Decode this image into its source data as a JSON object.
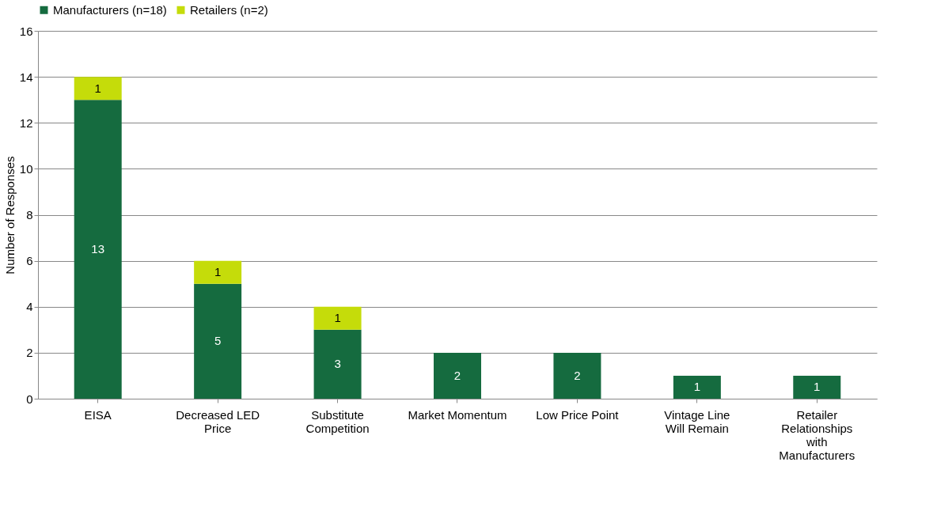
{
  "chart_data": {
    "type": "bar",
    "stacked": true,
    "ylabel": "Number of Responses",
    "categories": [
      "EISA",
      "Decreased LED Price",
      "Substitute Competition",
      "Market Momentum",
      "Low Price Point",
      "Vintage Line Will Remain",
      "Retailer Relationships with Manufacturers"
    ],
    "series": [
      {
        "name": "Manufacturers (n=18)",
        "color": "#156b3f",
        "values": [
          13,
          5,
          3,
          2,
          2,
          1,
          1
        ]
      },
      {
        "name": "Retailers (n=2)",
        "color": "#c5dc0a",
        "values": [
          1,
          1,
          1,
          null,
          null,
          null,
          null
        ]
      }
    ],
    "ylim": [
      0,
      16
    ],
    "yticks": [
      0,
      2,
      4,
      6,
      8,
      10,
      12,
      14,
      16
    ],
    "grid": "y",
    "legend": "top",
    "data_labels": true
  }
}
